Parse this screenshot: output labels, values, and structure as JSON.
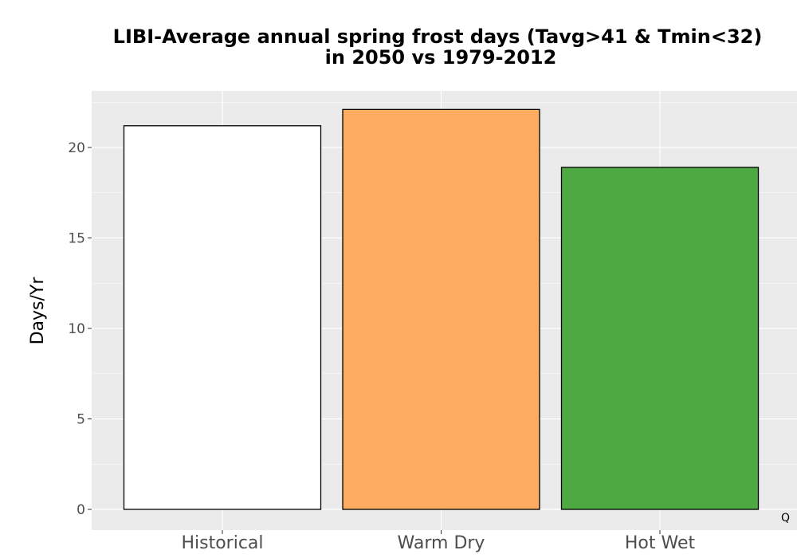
{
  "chart_data": {
    "type": "bar",
    "title_line1": "LIBI-Average annual spring frost days (Tavg>41 & Tmin<32)",
    "title_line2": "in 2050 vs 1979-2012",
    "xlabel": "",
    "ylabel": "Days/Yr",
    "categories": [
      "Historical",
      "Warm Dry",
      "Hot Wet"
    ],
    "values": [
      21.2,
      22.1,
      18.9
    ],
    "bar_colors": [
      "#ffffff",
      "#fcad62",
      "#4ea942"
    ],
    "bar_outline_color": "#000000",
    "y_ticks": [
      0,
      5,
      10,
      15,
      20
    ],
    "y_tick_labels": [
      "0",
      "5",
      "10",
      "15",
      "20"
    ],
    "ylim": [
      -1.1,
      23.1
    ],
    "grid": true,
    "panel_background": "#ebebeb",
    "grid_color": "#ffffff",
    "legend": "none",
    "corner_mark": "Q"
  }
}
